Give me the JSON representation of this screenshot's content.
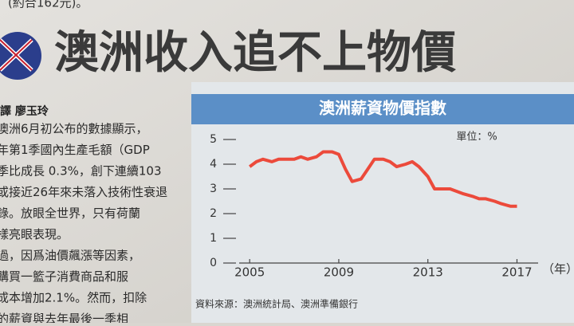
{
  "article": {
    "top_fragment": "(約合162元)。",
    "headline": "澳洲收入追不上物價",
    "byline": "譯 廖玉玲",
    "lines": [
      "澳洲6月初公布的數據顯示，",
      "年第1季國內生產毛額（GDP",
      "季比成長 0.3%，創下連續103",
      "或接近26年來未落入技術性衰退",
      "錄。放眼全世界，只有荷蘭",
      "樣亮眼表現。",
      "過，因爲油價飆漲等因素，",
      "購買一籃子消費商品和服",
      "成本增加2.1%。然而，扣除",
      "的薪資與去年最後一季相"
    ]
  },
  "chart_data": {
    "type": "line",
    "title": "澳洲薪資物價指數",
    "unit_label": "單位：%",
    "x_label": "（年）",
    "source": "資料來源：澳洲統計局、澳洲準備銀行",
    "x": [
      2005.0,
      2005.3,
      2005.6,
      2006.0,
      2006.3,
      2006.7,
      2007.0,
      2007.3,
      2007.6,
      2008.0,
      2008.3,
      2008.7,
      2009.0,
      2009.3,
      2009.6,
      2010.0,
      2010.3,
      2010.6,
      2011.0,
      2011.3,
      2011.6,
      2012.0,
      2012.3,
      2012.6,
      2013.0,
      2013.3,
      2013.6,
      2014.0,
      2014.3,
      2014.6,
      2015.0,
      2015.3,
      2015.6,
      2016.0,
      2016.3,
      2016.7,
      2017.0
    ],
    "series": [
      {
        "name": "澳洲薪資物價指數",
        "color": "#ec4a3b",
        "values": [
          3.9,
          4.1,
          4.2,
          4.1,
          4.2,
          4.2,
          4.2,
          4.3,
          4.2,
          4.3,
          4.5,
          4.5,
          4.4,
          3.8,
          3.3,
          3.4,
          3.8,
          4.2,
          4.2,
          4.1,
          3.9,
          4.0,
          4.1,
          3.9,
          3.5,
          3.0,
          3.0,
          3.0,
          2.9,
          2.8,
          2.7,
          2.6,
          2.6,
          2.5,
          2.4,
          2.3,
          2.3
        ]
      }
    ],
    "xlim": [
      2004.6,
      2018.2
    ],
    "xticks": [
      2005,
      2009,
      2013,
      2017
    ],
    "ylim": [
      0,
      5
    ],
    "yticks": [
      0,
      1,
      2,
      3,
      4,
      5
    ]
  }
}
